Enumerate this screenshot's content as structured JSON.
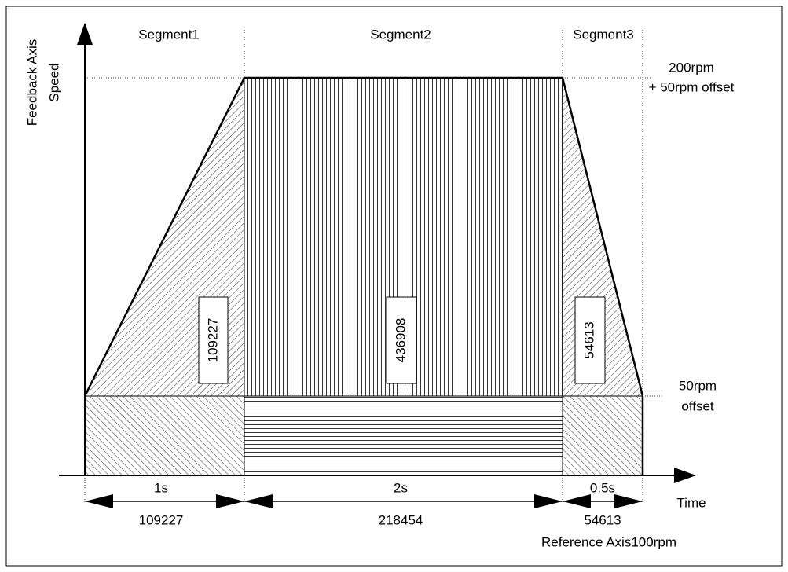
{
  "y_axis_label": [
    "Feedback Axis",
    "Speed"
  ],
  "x_axis_label": "Time",
  "reference_label": "Reference Axis100rpm",
  "top_speed_label": [
    "200rpm",
    "+ 50rpm offset"
  ],
  "offset_label": [
    "50rpm",
    "offset"
  ],
  "segments": [
    {
      "name": "Segment1",
      "duration": "1s",
      "reference_counts": "109227",
      "feedback_counts": "109227"
    },
    {
      "name": "Segment2",
      "duration": "2s",
      "reference_counts": "218454",
      "feedback_counts": "436908"
    },
    {
      "name": "Segment3",
      "duration": "0.5s",
      "reference_counts": "54613",
      "feedback_counts": "54613"
    }
  ]
}
